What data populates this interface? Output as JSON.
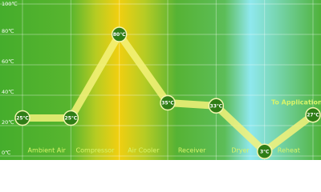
{
  "chart_data": {
    "type": "line",
    "zones": [
      "Ambient Air",
      "Compressor",
      "Air Cooler",
      "Receiver",
      "Dryer",
      "Reheat"
    ],
    "values": [
      25,
      25,
      80,
      35,
      33,
      3,
      27
    ],
    "value_labels": [
      "25℃",
      "25℃",
      "80℃",
      "35℃",
      "33℃",
      "3℃",
      "27℃"
    ],
    "annotation": "To Application",
    "ylim": [
      0,
      100
    ],
    "yticks": [
      {
        "value": 0,
        "label": "0℃"
      },
      {
        "value": 20,
        "label": "20℃"
      },
      {
        "value": 40,
        "label": "40℃"
      },
      {
        "value": 60,
        "label": "60℃"
      },
      {
        "value": 80,
        "label": "80℃"
      },
      {
        "value": 100,
        "label": "100℃"
      }
    ],
    "grid": true,
    "color": "#f4f27a"
  }
}
